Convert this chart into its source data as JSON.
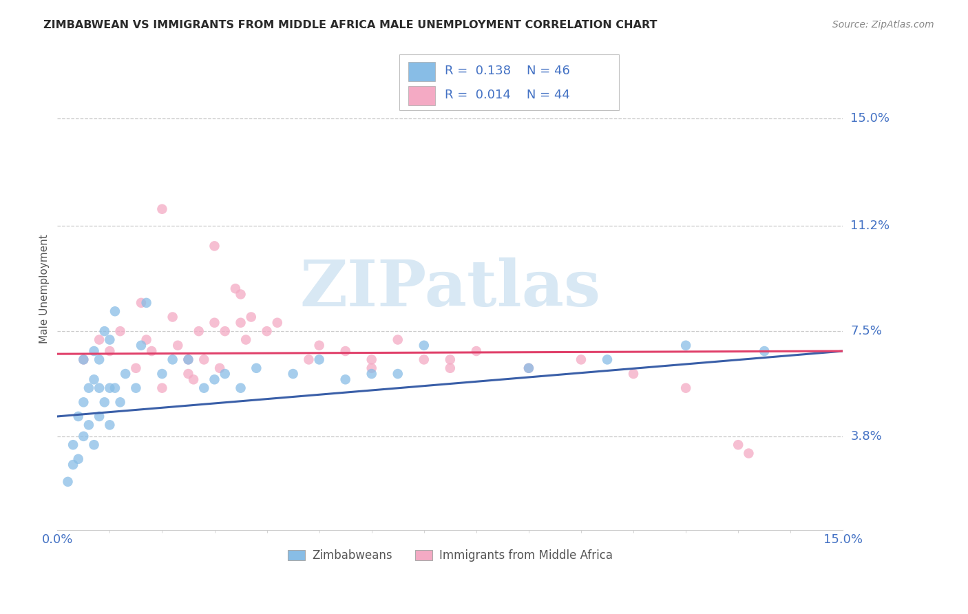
{
  "title": "ZIMBABWEAN VS IMMIGRANTS FROM MIDDLE AFRICA MALE UNEMPLOYMENT CORRELATION CHART",
  "source": "Source: ZipAtlas.com",
  "ylabel": "Male Unemployment",
  "ytick_labels": [
    "3.8%",
    "7.5%",
    "11.2%",
    "15.0%"
  ],
  "ytick_values": [
    3.8,
    7.5,
    11.2,
    15.0
  ],
  "xlim": [
    0.0,
    15.0
  ],
  "ylim": [
    0.5,
    17.5
  ],
  "blue_scatter_color": "#88bde6",
  "pink_scatter_color": "#f4aac4",
  "trend_blue_color": "#3a5fa8",
  "trend_pink_color": "#e0406a",
  "label_color": "#4472c4",
  "title_color": "#2a2a2a",
  "source_color": "#888888",
  "ylabel_color": "#555555",
  "grid_color": "#cccccc",
  "watermark_color": "#d8e8f4",
  "legend_label1": "Zimbabweans",
  "legend_label2": "Immigrants from Middle Africa",
  "blue_scatter_x": [
    0.2,
    0.3,
    0.3,
    0.4,
    0.4,
    0.5,
    0.5,
    0.5,
    0.6,
    0.6,
    0.7,
    0.7,
    0.7,
    0.8,
    0.8,
    0.8,
    0.9,
    0.9,
    1.0,
    1.0,
    1.0,
    1.1,
    1.1,
    1.2,
    1.3,
    1.5,
    1.6,
    1.7,
    2.0,
    2.2,
    2.5,
    2.8,
    3.0,
    3.2,
    3.5,
    3.8,
    4.5,
    5.0,
    5.5,
    6.0,
    6.5,
    7.0,
    9.0,
    10.5,
    12.0,
    13.5
  ],
  "blue_scatter_y": [
    2.2,
    2.8,
    3.5,
    3.0,
    4.5,
    3.8,
    5.0,
    6.5,
    4.2,
    5.5,
    3.5,
    5.8,
    6.8,
    4.5,
    5.5,
    6.5,
    5.0,
    7.5,
    4.2,
    5.5,
    7.2,
    5.5,
    8.2,
    5.0,
    6.0,
    5.5,
    7.0,
    8.5,
    6.0,
    6.5,
    6.5,
    5.5,
    5.8,
    6.0,
    5.5,
    6.2,
    6.0,
    6.5,
    5.8,
    6.0,
    6.0,
    7.0,
    6.2,
    6.5,
    7.0,
    6.8
  ],
  "pink_scatter_x": [
    0.5,
    0.8,
    1.0,
    1.2,
    1.5,
    1.6,
    1.7,
    1.8,
    2.0,
    2.2,
    2.3,
    2.5,
    2.6,
    2.7,
    2.8,
    3.0,
    3.1,
    3.2,
    3.4,
    3.5,
    3.6,
    3.7,
    4.0,
    4.2,
    4.8,
    5.0,
    5.5,
    6.0,
    6.5,
    7.0,
    7.5,
    8.0,
    9.0,
    10.0,
    11.0,
    12.0,
    13.0,
    3.0,
    3.5,
    2.0,
    2.5,
    7.5,
    6.0,
    13.2
  ],
  "pink_scatter_y": [
    6.5,
    7.2,
    6.8,
    7.5,
    6.2,
    8.5,
    7.2,
    6.8,
    5.5,
    8.0,
    7.0,
    6.0,
    5.8,
    7.5,
    6.5,
    7.8,
    6.2,
    7.5,
    9.0,
    7.8,
    7.2,
    8.0,
    7.5,
    7.8,
    6.5,
    7.0,
    6.8,
    6.5,
    7.2,
    6.5,
    6.2,
    6.8,
    6.2,
    6.5,
    6.0,
    5.5,
    3.5,
    10.5,
    8.8,
    11.8,
    6.5,
    6.5,
    6.2,
    3.2
  ],
  "trend_blue_x_start": 0.0,
  "trend_blue_y_start": 4.5,
  "trend_blue_x_end": 15.0,
  "trend_blue_y_end": 6.8,
  "trend_pink_x_start": 0.0,
  "trend_pink_y_start": 6.7,
  "trend_pink_x_end": 15.0,
  "trend_pink_y_end": 6.8
}
